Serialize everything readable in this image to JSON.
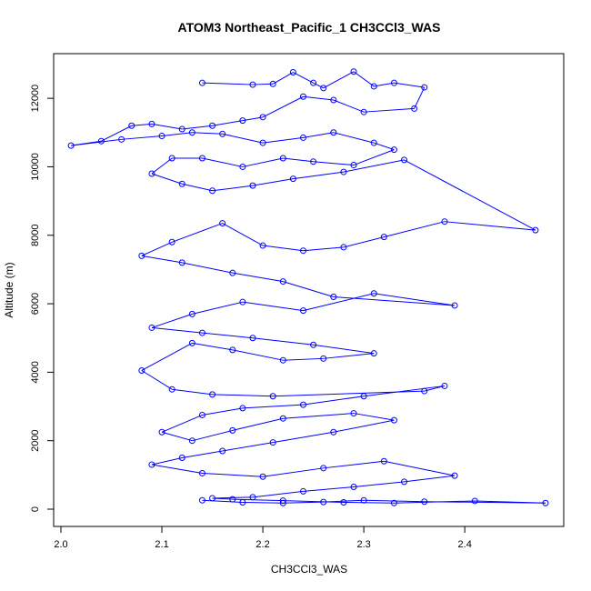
{
  "chart_data": {
    "type": "line",
    "title": "ATOM3 Northeast_Pacific_1 CH3CCl3_WAS",
    "xlabel": "CH3CCl3_WAS",
    "ylabel": "Altitude (m)",
    "xlim": [
      2.0,
      2.48
    ],
    "ylim": [
      0,
      12800
    ],
    "xticks": [
      "2.0",
      "2.1",
      "2.2",
      "2.3",
      "2.4"
    ],
    "yticks": [
      "0",
      "2000",
      "4000",
      "6000",
      "8000",
      "10000",
      "12000"
    ],
    "grid": false,
    "legend": "none",
    "colors": {
      "series": "#0000ff",
      "frame": "#000000"
    },
    "series": [
      {
        "marker": "open-circle",
        "x": [
          2.14,
          2.19,
          2.21,
          2.23,
          2.25,
          2.26,
          2.29,
          2.31,
          2.33,
          2.36,
          2.35,
          2.3,
          2.27,
          2.24,
          2.2,
          2.18,
          2.15,
          2.12,
          2.09,
          2.07,
          2.04,
          2.01,
          2.06,
          2.1,
          2.13,
          2.16,
          2.2,
          2.24,
          2.27,
          2.31,
          2.33,
          2.29,
          2.25,
          2.22,
          2.18,
          2.14,
          2.11,
          2.09,
          2.12,
          2.15,
          2.19,
          2.23,
          2.28,
          2.34,
          2.47,
          2.38,
          2.32,
          2.28,
          2.24,
          2.2,
          2.16,
          2.11,
          2.08,
          2.12,
          2.17,
          2.22,
          2.27,
          2.39,
          2.31,
          2.24,
          2.18,
          2.13,
          2.09,
          2.14,
          2.19,
          2.25,
          2.31,
          2.26,
          2.22,
          2.17,
          2.13,
          2.08,
          2.11,
          2.15,
          2.21,
          2.36,
          2.38,
          2.3,
          2.24,
          2.18,
          2.14,
          2.1,
          2.13,
          2.17,
          2.22,
          2.29,
          2.33,
          2.27,
          2.21,
          2.16,
          2.12,
          2.09,
          2.14,
          2.2,
          2.26,
          2.32,
          2.39,
          2.34,
          2.29,
          2.24,
          2.19,
          2.15,
          2.17,
          2.22,
          2.28,
          2.33,
          2.41,
          2.48,
          2.36,
          2.3,
          2.26,
          2.22,
          2.18,
          2.14
        ],
        "y": [
          12450,
          12400,
          12420,
          12760,
          12450,
          12300,
          12780,
          12350,
          12450,
          12320,
          11700,
          11600,
          11950,
          12050,
          11450,
          11350,
          11200,
          11100,
          11250,
          11200,
          10750,
          10620,
          10800,
          10900,
          11000,
          10960,
          10700,
          10850,
          11000,
          10700,
          10500,
          10050,
          10150,
          10250,
          10000,
          10250,
          10250,
          9800,
          9500,
          9300,
          9450,
          9650,
          9850,
          10200,
          8150,
          8400,
          7950,
          7650,
          7550,
          7700,
          8350,
          7800,
          7400,
          7200,
          6900,
          6650,
          6200,
          5950,
          6300,
          5800,
          6050,
          5700,
          5300,
          5150,
          5000,
          4800,
          4550,
          4400,
          4350,
          4650,
          4850,
          4050,
          3500,
          3350,
          3300,
          3450,
          3600,
          3300,
          3050,
          2950,
          2750,
          2250,
          2000,
          2300,
          2650,
          2800,
          2600,
          2250,
          1950,
          1700,
          1500,
          1300,
          1050,
          950,
          1200,
          1400,
          980,
          800,
          650,
          520,
          350,
          320,
          290,
          250,
          200,
          180,
          240,
          180,
          220,
          260,
          210,
          180,
          200,
          260
        ]
      }
    ]
  }
}
